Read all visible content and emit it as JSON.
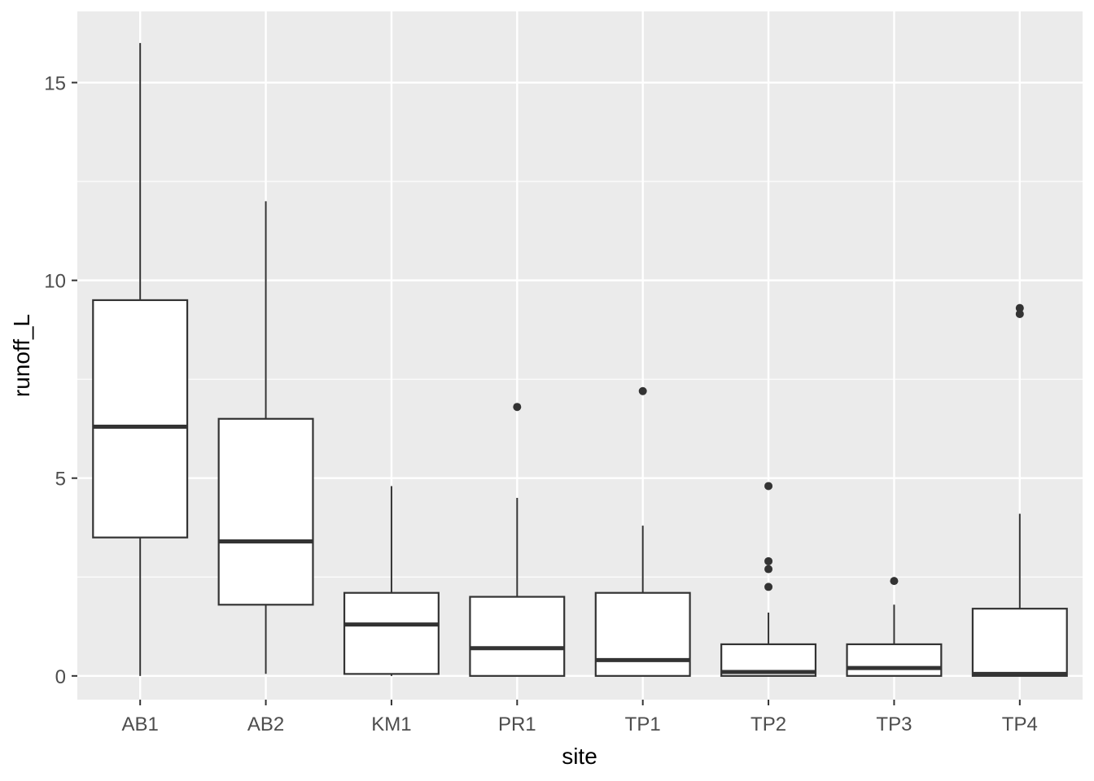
{
  "chart_data": {
    "type": "boxplot",
    "title": "",
    "xlabel": "site",
    "ylabel": "runoff_L",
    "ylim": [
      -0.6,
      16.8
    ],
    "yticks": [
      0,
      5,
      10,
      15
    ],
    "yminor": [
      2.5,
      7.5,
      12.5
    ],
    "grid": true,
    "legend": false,
    "categories": [
      "AB1",
      "AB2",
      "KM1",
      "PR1",
      "TP1",
      "TP2",
      "TP3",
      "TP4"
    ],
    "boxes": [
      {
        "site": "AB1",
        "whisker_low": 0,
        "q1": 3.5,
        "median": 6.3,
        "q3": 9.5,
        "whisker_high": 16,
        "outliers": []
      },
      {
        "site": "AB2",
        "whisker_low": 0.05,
        "q1": 1.8,
        "median": 3.4,
        "q3": 6.5,
        "whisker_high": 12,
        "outliers": []
      },
      {
        "site": "KM1",
        "whisker_low": 0,
        "q1": 0.05,
        "median": 1.3,
        "q3": 2.1,
        "whisker_high": 4.8,
        "outliers": []
      },
      {
        "site": "PR1",
        "whisker_low": 0,
        "q1": 0,
        "median": 0.7,
        "q3": 2.0,
        "whisker_high": 4.5,
        "outliers": [
          6.8
        ]
      },
      {
        "site": "TP1",
        "whisker_low": 0,
        "q1": 0,
        "median": 0.4,
        "q3": 2.1,
        "whisker_high": 3.8,
        "outliers": [
          7.2
        ]
      },
      {
        "site": "TP2",
        "whisker_low": 0,
        "q1": 0,
        "median": 0.1,
        "q3": 0.8,
        "whisker_high": 1.6,
        "outliers": [
          2.25,
          2.7,
          2.9,
          4.8
        ]
      },
      {
        "site": "TP3",
        "whisker_low": 0,
        "q1": 0,
        "median": 0.2,
        "q3": 0.8,
        "whisker_high": 1.8,
        "outliers": [
          2.4
        ]
      },
      {
        "site": "TP4",
        "whisker_low": 0,
        "q1": 0,
        "median": 0.05,
        "q3": 1.7,
        "whisker_high": 4.1,
        "outliers": [
          9.15,
          9.3
        ]
      }
    ],
    "colors": {
      "panel_background": "#EBEBEB",
      "grid": "#FFFFFF",
      "box_fill": "#FFFFFF",
      "box_stroke": "#333333",
      "tick": "#333333",
      "outlier": "#333333",
      "tick_text": "#4D4D4D"
    }
  }
}
